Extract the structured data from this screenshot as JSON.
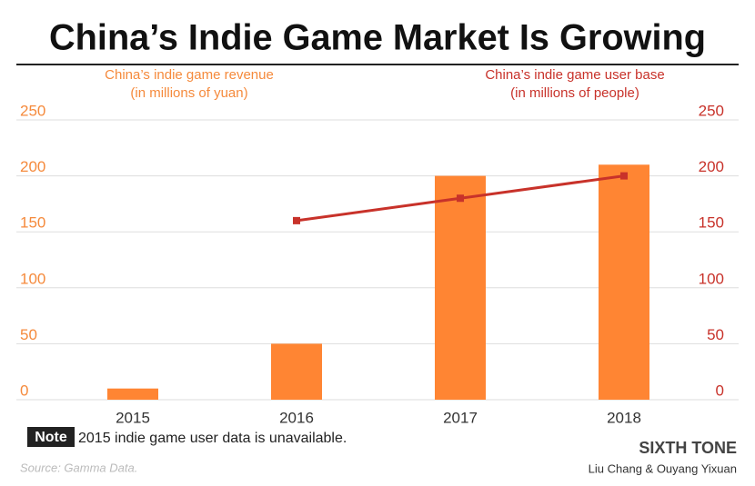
{
  "chart_data": {
    "type": "bar",
    "title": "China’s Indie Game Market Is Growing",
    "categories": [
      "2015",
      "2016",
      "2017",
      "2018"
    ],
    "series": [
      {
        "type": "bar",
        "color": "#ff8533",
        "values": [
          10,
          50,
          200,
          210
        ]
      },
      {
        "type": "line",
        "axis": "y2",
        "color": "#c8322a",
        "values": [
          null,
          160,
          180,
          200
        ]
      }
    ],
    "ylabel": [
      "China’s indie game revenue",
      "(in millions of yuan)"
    ],
    "y2label": [
      "China’s indie game user base",
      "(in millions of people)"
    ],
    "ylim": [
      0,
      250
    ],
    "yticks": [
      0,
      50,
      100,
      150,
      200,
      250
    ],
    "y2lim": [
      0,
      250
    ],
    "y2ticks": [
      0,
      50,
      100,
      150,
      200,
      250
    ],
    "grid": true,
    "note_label": "Note",
    "note": "2015 indie game user data is unavailable.",
    "source": "Source: Gamma Data.",
    "brand": "SIXTH TONE",
    "credit": "Liu Chang & Ouyang Yixuan"
  }
}
